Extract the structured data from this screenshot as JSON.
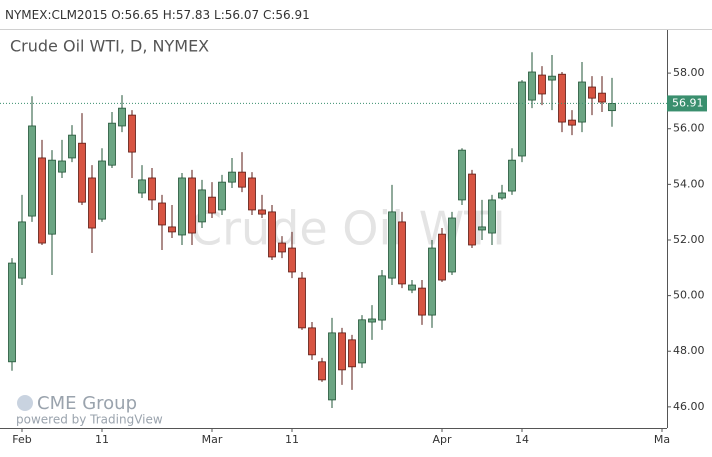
{
  "header": {
    "symbol": "NYMEX:CLM2015",
    "fields": [
      "O:56.65",
      "H:57.83",
      "L:56.07",
      "C:56.91"
    ]
  },
  "branding": {
    "logo": "CME Group",
    "powered_by": "powered by TradingView"
  },
  "chart_data": {
    "type": "candlestick",
    "title": "Crude Oil WTI, D, NYMEX",
    "watermark": "Crude Oil WTI",
    "categories": [
      null,
      "Feb",
      null,
      null,
      null,
      null,
      null,
      null,
      null,
      "11",
      null,
      null,
      null,
      null,
      null,
      null,
      null,
      null,
      null,
      null,
      "Mar",
      null,
      null,
      null,
      null,
      null,
      null,
      null,
      "11",
      null,
      null,
      null,
      null,
      null,
      null,
      null,
      null,
      null,
      null,
      null,
      null,
      null,
      null,
      "Apr",
      null,
      null,
      null,
      null,
      null,
      null,
      null,
      "14",
      null,
      null,
      null,
      null,
      null,
      null,
      null,
      null,
      null,
      null,
      null,
      null,
      null,
      "Ma"
    ],
    "series": [
      {
        "open": [
          47.62,
          50.63,
          52.86,
          54.95,
          52.21,
          54.44,
          54.95,
          55.48,
          54.23,
          52.75,
          54.69,
          56.1,
          56.49,
          53.69,
          54.23,
          53.33,
          52.47,
          52.18,
          54.23,
          52.65,
          53.54,
          53.08,
          54.08,
          54.44,
          54.23,
          53.08,
          53.01,
          51.89,
          51.71,
          50.63,
          48.84,
          47.62,
          46.25,
          48.66,
          48.41,
          47.58,
          49.05,
          49.12,
          50.63,
          52.65,
          50.2,
          50.27,
          49.3,
          52.21,
          50.85,
          53.44,
          54.37,
          52.36,
          52.25,
          53.51,
          53.76,
          55.02,
          57.03,
          57.93,
          57.75,
          57.96,
          56.31,
          56.24,
          57.5,
          57.28,
          56.65,
          null,
          null,
          null,
          null,
          null
        ],
        "high": [
          51.35,
          53.62,
          57.17,
          55.6,
          55.23,
          55.6,
          56.13,
          56.56,
          54.69,
          55.3,
          56.6,
          57.21,
          56.67,
          54.69,
          54.59,
          53.62,
          53.26,
          54.41,
          54.52,
          54.16,
          54.08,
          54.34,
          54.95,
          55.16,
          54.44,
          53.62,
          53.26,
          52.14,
          52.29,
          50.85,
          49.05,
          47.76,
          49.2,
          48.84,
          48.59,
          49.3,
          49.66,
          50.92,
          53.98,
          53.01,
          50.56,
          50.56,
          52.0,
          52.43,
          53.01,
          55.3,
          54.52,
          53.44,
          53.62,
          53.98,
          55.3,
          57.75,
          58.75,
          58.25,
          58.65,
          58.04,
          56.67,
          58.4,
          57.89,
          57.89,
          57.83,
          null,
          null,
          null,
          null,
          null
        ],
        "low": [
          47.3,
          50.38,
          52.65,
          51.82,
          50.74,
          54.23,
          54.8,
          53.26,
          51.53,
          52.65,
          54.59,
          55.88,
          54.23,
          53.51,
          53.08,
          51.64,
          52.07,
          51.82,
          51.82,
          52.43,
          52.79,
          52.9,
          53.87,
          53.72,
          52.9,
          52.79,
          51.28,
          51.35,
          50.63,
          48.77,
          47.69,
          46.9,
          45.96,
          46.79,
          46.61,
          47.4,
          48.41,
          48.77,
          50.38,
          50.27,
          50.09,
          48.95,
          48.84,
          50.49,
          50.74,
          53.26,
          51.71,
          52.0,
          51.82,
          53.44,
          53.62,
          54.8,
          56.74,
          56.85,
          56.67,
          55.88,
          55.77,
          55.88,
          56.49,
          56.6,
          56.07,
          null,
          null,
          null,
          null,
          null
        ],
        "close": [
          51.17,
          52.65,
          56.1,
          51.89,
          54.87,
          54.84,
          55.77,
          53.36,
          52.43,
          54.84,
          56.2,
          56.74,
          55.16,
          54.16,
          53.44,
          52.54,
          52.29,
          54.23,
          52.25,
          53.8,
          52.97,
          54.08,
          54.44,
          53.9,
          53.08,
          52.93,
          51.39,
          51.57,
          50.85,
          48.84,
          47.87,
          46.97,
          48.66,
          47.33,
          47.44,
          49.13,
          49.16,
          50.71,
          53.01,
          50.42,
          50.38,
          49.3,
          51.71,
          50.56,
          52.79,
          55.23,
          51.82,
          52.47,
          53.44,
          53.69,
          54.87,
          57.68,
          58.04,
          57.25,
          57.89,
          56.24,
          56.13,
          57.68,
          57.1,
          56.96,
          56.91,
          null,
          null,
          null,
          null,
          null
        ]
      }
    ],
    "up_color": "#6ba583",
    "up_border": "#225437",
    "down_color": "#d75442",
    "down_border": "#5b1a13",
    "ylim": [
      45.24,
      59.55
    ],
    "yticks": [
      {
        "value": 46,
        "label": "46.00"
      },
      {
        "value": 48,
        "label": "48.00"
      },
      {
        "value": 50,
        "label": "50.00"
      },
      {
        "value": 52,
        "label": "52.00"
      },
      {
        "value": 54,
        "label": "54.00"
      },
      {
        "value": 56,
        "label": "56.00"
      },
      {
        "value": 58,
        "label": "58.00"
      }
    ],
    "last_price": {
      "value": 56.91,
      "label": "56.91",
      "color": "#3a8f6e"
    }
  }
}
